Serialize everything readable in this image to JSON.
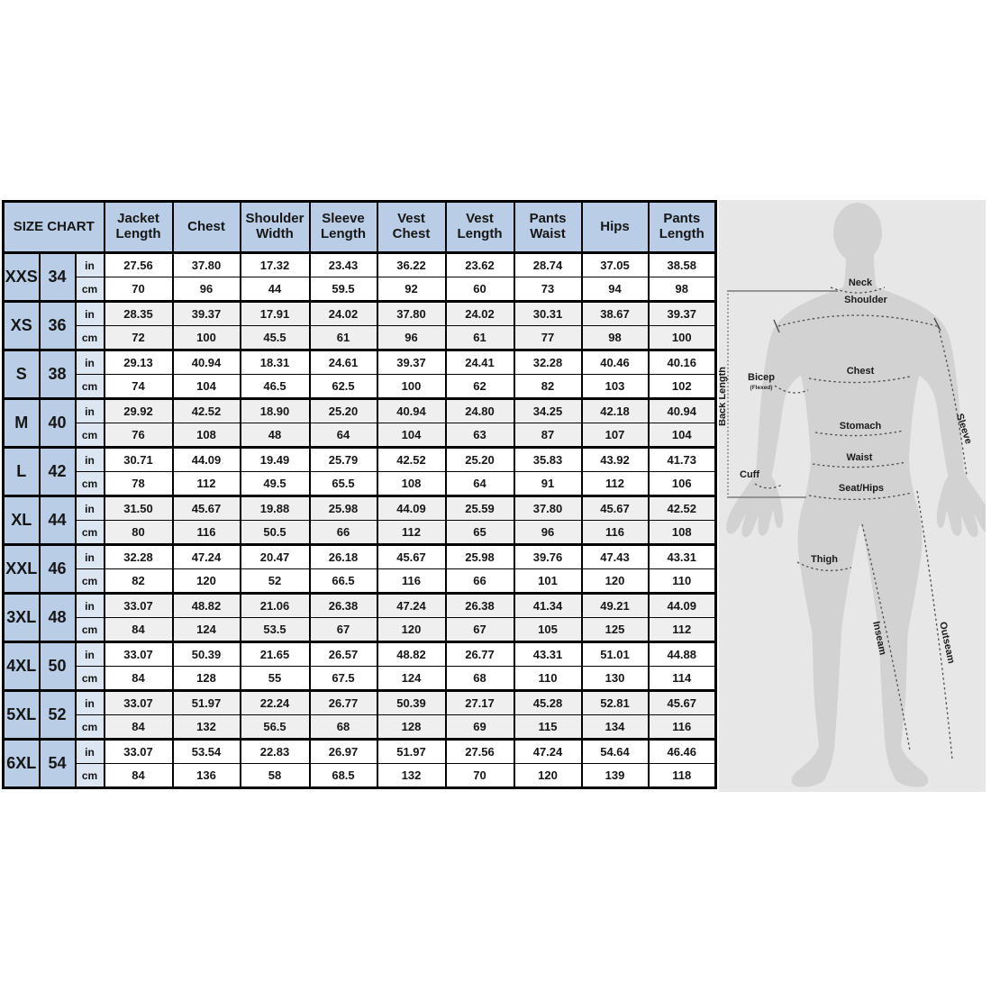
{
  "chart_data": {
    "type": "table",
    "title": "SIZE CHART",
    "columns": [
      "Jacket\nLength",
      "Chest",
      "Shoulder\nWidth",
      "Sleeve\nLength",
      "Vest\nChest",
      "Vest\nLength",
      "Pants\nWaist",
      "Hips",
      "Pants\nLength"
    ],
    "units": [
      "in",
      "cm"
    ],
    "sizes": [
      {
        "label": "XXS",
        "number": "34",
        "in": [
          "27.56",
          "37.80",
          "17.32",
          "23.43",
          "36.22",
          "23.62",
          "28.74",
          "37.05",
          "38.58"
        ],
        "cm": [
          "70",
          "96",
          "44",
          "59.5",
          "92",
          "60",
          "73",
          "94",
          "98"
        ]
      },
      {
        "label": "XS",
        "number": "36",
        "in": [
          "28.35",
          "39.37",
          "17.91",
          "24.02",
          "37.80",
          "24.02",
          "30.31",
          "38.67",
          "39.37"
        ],
        "cm": [
          "72",
          "100",
          "45.5",
          "61",
          "96",
          "61",
          "77",
          "98",
          "100"
        ]
      },
      {
        "label": "S",
        "number": "38",
        "in": [
          "29.13",
          "40.94",
          "18.31",
          "24.61",
          "39.37",
          "24.41",
          "32.28",
          "40.46",
          "40.16"
        ],
        "cm": [
          "74",
          "104",
          "46.5",
          "62.5",
          "100",
          "62",
          "82",
          "103",
          "102"
        ]
      },
      {
        "label": "M",
        "number": "40",
        "in": [
          "29.92",
          "42.52",
          "18.90",
          "25.20",
          "40.94",
          "24.80",
          "34.25",
          "42.18",
          "40.94"
        ],
        "cm": [
          "76",
          "108",
          "48",
          "64",
          "104",
          "63",
          "87",
          "107",
          "104"
        ]
      },
      {
        "label": "L",
        "number": "42",
        "in": [
          "30.71",
          "44.09",
          "19.49",
          "25.79",
          "42.52",
          "25.20",
          "35.83",
          "43.92",
          "41.73"
        ],
        "cm": [
          "78",
          "112",
          "49.5",
          "65.5",
          "108",
          "64",
          "91",
          "112",
          "106"
        ]
      },
      {
        "label": "XL",
        "number": "44",
        "in": [
          "31.50",
          "45.67",
          "19.88",
          "25.98",
          "44.09",
          "25.59",
          "37.80",
          "45.67",
          "42.52"
        ],
        "cm": [
          "80",
          "116",
          "50.5",
          "66",
          "112",
          "65",
          "96",
          "116",
          "108"
        ]
      },
      {
        "label": "XXL",
        "number": "46",
        "in": [
          "32.28",
          "47.24",
          "20.47",
          "26.18",
          "45.67",
          "25.98",
          "39.76",
          "47.43",
          "43.31"
        ],
        "cm": [
          "82",
          "120",
          "52",
          "66.5",
          "116",
          "66",
          "101",
          "120",
          "110"
        ]
      },
      {
        "label": "3XL",
        "number": "48",
        "in": [
          "33.07",
          "48.82",
          "21.06",
          "26.38",
          "47.24",
          "26.38",
          "41.34",
          "49.21",
          "44.09"
        ],
        "cm": [
          "84",
          "124",
          "53.5",
          "67",
          "120",
          "67",
          "105",
          "125",
          "112"
        ]
      },
      {
        "label": "4XL",
        "number": "50",
        "in": [
          "33.07",
          "50.39",
          "21.65",
          "26.57",
          "48.82",
          "26.77",
          "43.31",
          "51.01",
          "44.88"
        ],
        "cm": [
          "84",
          "128",
          "55",
          "67.5",
          "124",
          "68",
          "110",
          "130",
          "114"
        ]
      },
      {
        "label": "5XL",
        "number": "52",
        "in": [
          "33.07",
          "51.97",
          "22.24",
          "26.77",
          "50.39",
          "27.17",
          "45.28",
          "52.81",
          "45.67"
        ],
        "cm": [
          "84",
          "132",
          "56.5",
          "68",
          "128",
          "69",
          "115",
          "134",
          "116"
        ]
      },
      {
        "label": "6XL",
        "number": "54",
        "in": [
          "33.07",
          "53.54",
          "22.83",
          "26.97",
          "51.97",
          "27.56",
          "47.24",
          "54.64",
          "46.46"
        ],
        "cm": [
          "84",
          "136",
          "58",
          "68.5",
          "132",
          "70",
          "120",
          "139",
          "118"
        ]
      }
    ]
  },
  "diagram": {
    "labels": {
      "neck": "Neck",
      "shoulder": "Shoulder",
      "chest": "Chest",
      "bicep": "Bicep",
      "bicep_sub": "(Flexed)",
      "back_length": "Back Length",
      "stomach": "Stomach",
      "waist": "Waist",
      "cuff": "Cuff",
      "seat_hips": "Seat/Hips",
      "sleeve": "Sleeve",
      "thigh": "Thigh",
      "inseam": "Inseam",
      "outseam": "Outseam"
    }
  },
  "colors": {
    "header_blue": "#b9cde6",
    "unit_blue": "#dce6f3",
    "row_gray": "#efefef",
    "row_white": "#ffffff",
    "table_border": "#000000",
    "diagram_background": "#e7e7e7",
    "silhouette_gray": "#d2d2d2",
    "measure_line": "#4d4d4d"
  }
}
